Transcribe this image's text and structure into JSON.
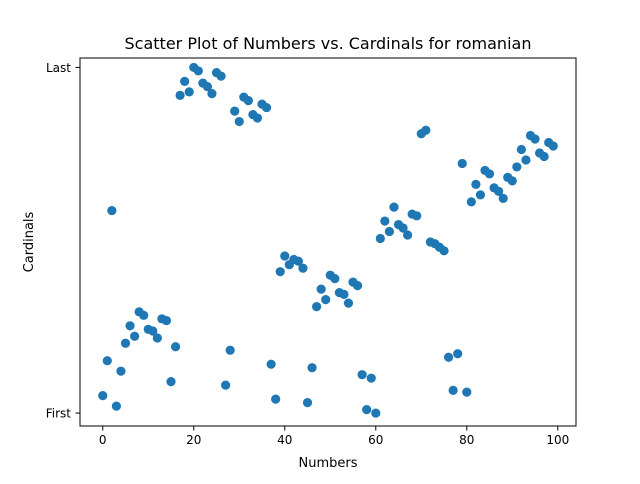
{
  "chart_data": {
    "type": "scatter",
    "title": "Scatter Plot of Numbers vs. Cardinals for romanian",
    "xlabel": "Numbers",
    "ylabel": "Cardinals",
    "xlim": [
      -5,
      104
    ],
    "ylim": [
      -3.7,
      101.7
    ],
    "grid": false,
    "legend": "none",
    "marker_color": "#1f77b4",
    "x_ticks": [
      {
        "value": 0,
        "label": "0"
      },
      {
        "value": 20,
        "label": "20"
      },
      {
        "value": 40,
        "label": "40"
      },
      {
        "value": 60,
        "label": "60"
      },
      {
        "value": 80,
        "label": "80"
      },
      {
        "value": 100,
        "label": "100"
      }
    ],
    "y_ticks": [
      {
        "value": 0,
        "label": "First"
      },
      {
        "value": 99,
        "label": "Last"
      }
    ],
    "points": [
      {
        "x": 0,
        "y": 5
      },
      {
        "x": 1,
        "y": 15
      },
      {
        "x": 2,
        "y": 58
      },
      {
        "x": 3,
        "y": 2
      },
      {
        "x": 4,
        "y": 12
      },
      {
        "x": 5,
        "y": 20
      },
      {
        "x": 6,
        "y": 25
      },
      {
        "x": 7,
        "y": 22
      },
      {
        "x": 8,
        "y": 29
      },
      {
        "x": 9,
        "y": 28
      },
      {
        "x": 10,
        "y": 24
      },
      {
        "x": 11,
        "y": 23.5
      },
      {
        "x": 12,
        "y": 21.5
      },
      {
        "x": 13,
        "y": 27
      },
      {
        "x": 14,
        "y": 26.5
      },
      {
        "x": 15,
        "y": 9
      },
      {
        "x": 16,
        "y": 19
      },
      {
        "x": 17,
        "y": 91
      },
      {
        "x": 18,
        "y": 95
      },
      {
        "x": 19,
        "y": 92
      },
      {
        "x": 20,
        "y": 99
      },
      {
        "x": 21,
        "y": 98
      },
      {
        "x": 22,
        "y": 94.5
      },
      {
        "x": 23,
        "y": 93.5
      },
      {
        "x": 24,
        "y": 91.5
      },
      {
        "x": 25,
        "y": 97.5
      },
      {
        "x": 26,
        "y": 96.5
      },
      {
        "x": 27,
        "y": 8
      },
      {
        "x": 28,
        "y": 18
      },
      {
        "x": 29,
        "y": 86.5
      },
      {
        "x": 30,
        "y": 83.5
      },
      {
        "x": 31,
        "y": 90.5
      },
      {
        "x": 32,
        "y": 89.5
      },
      {
        "x": 33,
        "y": 85.5
      },
      {
        "x": 34,
        "y": 84.5
      },
      {
        "x": 35,
        "y": 88.5
      },
      {
        "x": 36,
        "y": 87.5
      },
      {
        "x": 37,
        "y": 14
      },
      {
        "x": 38,
        "y": 4
      },
      {
        "x": 39,
        "y": 40.5
      },
      {
        "x": 40,
        "y": 45
      },
      {
        "x": 41,
        "y": 42.5
      },
      {
        "x": 42,
        "y": 44
      },
      {
        "x": 43,
        "y": 43.5
      },
      {
        "x": 44,
        "y": 41.5
      },
      {
        "x": 45,
        "y": 3
      },
      {
        "x": 46,
        "y": 13
      },
      {
        "x": 47,
        "y": 30.5
      },
      {
        "x": 48,
        "y": 35.5
      },
      {
        "x": 49,
        "y": 32.5
      },
      {
        "x": 50,
        "y": 39.5
      },
      {
        "x": 51,
        "y": 38.5
      },
      {
        "x": 52,
        "y": 34.5
      },
      {
        "x": 53,
        "y": 34
      },
      {
        "x": 54,
        "y": 31.5
      },
      {
        "x": 55,
        "y": 37.5
      },
      {
        "x": 56,
        "y": 36.5
      },
      {
        "x": 57,
        "y": 11
      },
      {
        "x": 58,
        "y": 1
      },
      {
        "x": 59,
        "y": 10
      },
      {
        "x": 60,
        "y": 0
      },
      {
        "x": 61,
        "y": 50
      },
      {
        "x": 62,
        "y": 55
      },
      {
        "x": 63,
        "y": 52
      },
      {
        "x": 64,
        "y": 59
      },
      {
        "x": 65,
        "y": 54
      },
      {
        "x": 66,
        "y": 53
      },
      {
        "x": 67,
        "y": 51
      },
      {
        "x": 68,
        "y": 57
      },
      {
        "x": 69,
        "y": 56.5
      },
      {
        "x": 70,
        "y": 80
      },
      {
        "x": 71,
        "y": 81
      },
      {
        "x": 72,
        "y": 49
      },
      {
        "x": 73,
        "y": 48.5
      },
      {
        "x": 74,
        "y": 47.5
      },
      {
        "x": 75,
        "y": 46.5
      },
      {
        "x": 76,
        "y": 16
      },
      {
        "x": 77,
        "y": 6.5
      },
      {
        "x": 78,
        "y": 17
      },
      {
        "x": 79,
        "y": 71.5
      },
      {
        "x": 80,
        "y": 6
      },
      {
        "x": 81,
        "y": 60.5
      },
      {
        "x": 82,
        "y": 65.5
      },
      {
        "x": 83,
        "y": 62.5
      },
      {
        "x": 84,
        "y": 69.5
      },
      {
        "x": 85,
        "y": 68.5
      },
      {
        "x": 86,
        "y": 64.5
      },
      {
        "x": 87,
        "y": 63.5
      },
      {
        "x": 88,
        "y": 61.5
      },
      {
        "x": 89,
        "y": 67.5
      },
      {
        "x": 90,
        "y": 66.5
      },
      {
        "x": 91,
        "y": 70.5
      },
      {
        "x": 92,
        "y": 75.5
      },
      {
        "x": 93,
        "y": 72.5
      },
      {
        "x": 94,
        "y": 79.5
      },
      {
        "x": 95,
        "y": 78.5
      },
      {
        "x": 96,
        "y": 74.5
      },
      {
        "x": 97,
        "y": 73.5
      },
      {
        "x": 98,
        "y": 77.5
      },
      {
        "x": 99,
        "y": 76.5
      }
    ]
  }
}
